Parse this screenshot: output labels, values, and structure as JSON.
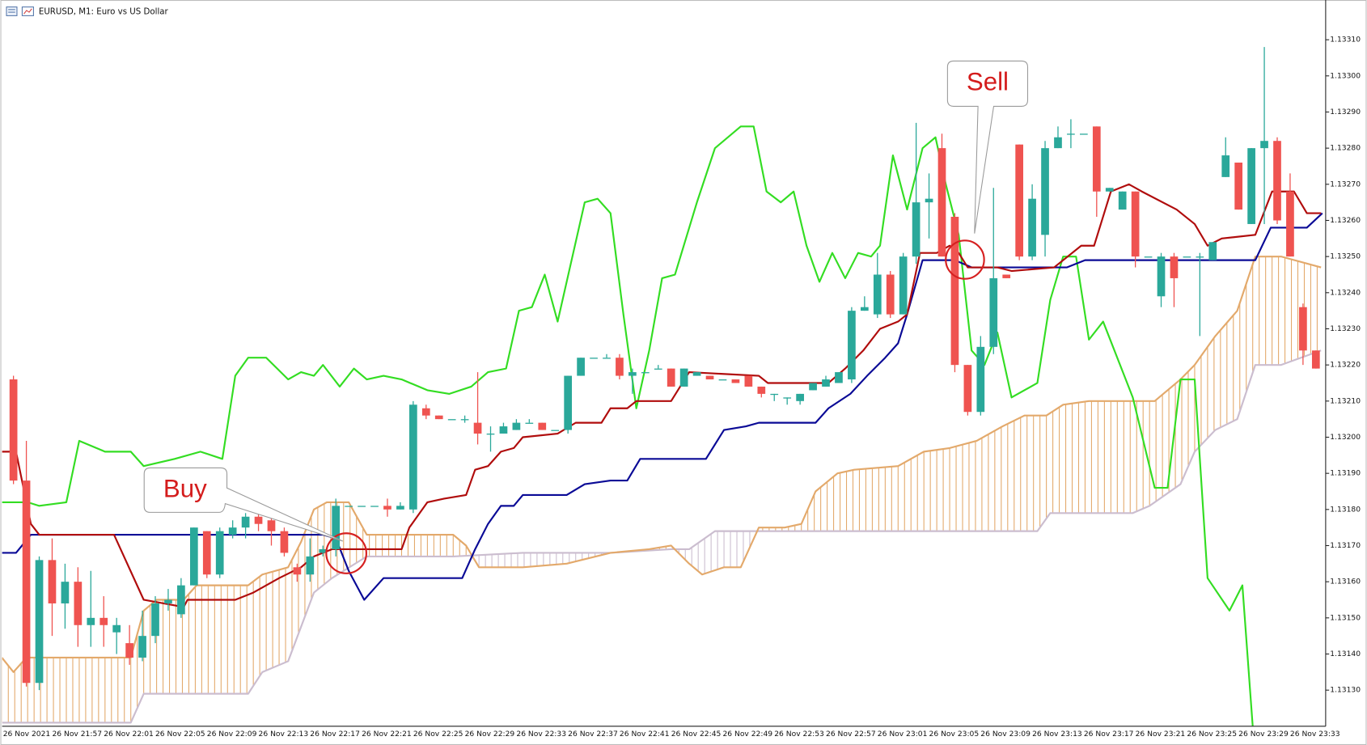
{
  "chart_data": {
    "type": "candlestick",
    "title": "EURUSD, M1: Euro vs US Dollar",
    "up_color": "#2aa89a",
    "down_color": "#ef5350",
    "categories": [
      "26 Nov 2021",
      null,
      null,
      "26 Nov 21:57",
      null,
      null,
      null,
      "26 Nov 22:01",
      null,
      null,
      null,
      "26 Nov 22:05",
      null,
      null,
      null,
      "26 Nov 22:09",
      null,
      null,
      null,
      "26 Nov 22:13",
      null,
      null,
      null,
      "26 Nov 22:17",
      null,
      null,
      null,
      "26 Nov 22:21",
      null,
      null,
      null,
      "26 Nov 22:25",
      null,
      null,
      null,
      "26 Nov 22:29",
      null,
      null,
      null,
      "26 Nov 22:33",
      null,
      null,
      null,
      "26 Nov 22:37",
      null,
      null,
      null,
      "26 Nov 22:41",
      null,
      null,
      null,
      "26 Nov 22:45",
      null,
      null,
      null,
      "26 Nov 22:49",
      null,
      null,
      null,
      "26 Nov 22:53",
      null,
      null,
      null,
      "26 Nov 22:57",
      null,
      null,
      null,
      "26 Nov 23:01",
      null,
      null,
      null,
      "26 Nov 23:05",
      null,
      null,
      null,
      "26 Nov 23:09",
      null,
      null,
      null,
      "26 Nov 23:13",
      null,
      null,
      null,
      "26 Nov 23:17",
      null,
      null,
      null,
      "26 Nov 23:21",
      null,
      null,
      null,
      "26 Nov 23:25",
      null,
      null,
      null,
      "26 Nov 23:29",
      null,
      null,
      null,
      "26 Nov 23:33",
      null,
      null
    ],
    "open": [
      1.13216,
      1.13188,
      1.13132,
      1.13166,
      1.13154,
      1.1316,
      1.13148,
      1.1315,
      1.13146,
      1.13143,
      1.13139,
      1.13145,
      1.13154,
      1.13151,
      1.13159,
      1.13174,
      1.13162,
      1.13173,
      1.13175,
      1.13178,
      1.13177,
      1.13174,
      1.13164,
      1.13162,
      1.13168,
      1.13169,
      1.13181,
      1.13181,
      1.13181,
      1.13181,
      1.1318,
      1.1318,
      1.13208,
      1.13206,
      1.13205,
      1.13205,
      1.13204,
      1.13201,
      1.13201,
      1.13202,
      1.13204,
      1.13204,
      1.13202,
      1.13202,
      1.13217,
      1.13222,
      1.13222,
      1.13222,
      1.13217,
      1.13218,
      1.13219,
      1.13219,
      1.13214,
      1.13217,
      1.13217,
      1.13216,
      1.13216,
      1.13217,
      1.13214,
      1.13212,
      1.13211,
      1.1321,
      1.13213,
      1.13214,
      1.13215,
      1.13216,
      1.13235,
      1.13234,
      1.13245,
      1.13234,
      1.1325,
      1.13265,
      1.1328,
      1.13261,
      1.1322,
      1.13207,
      1.13225,
      1.13245,
      1.13281,
      1.1325,
      1.13256,
      1.1328,
      1.13284,
      1.13284,
      1.13286,
      1.13268,
      1.13263,
      1.13268,
      1.1325,
      1.13239,
      1.1325,
      1.1325,
      1.1325,
      1.13249,
      1.13272,
      1.13276,
      1.13259,
      1.1328,
      1.13282,
      1.13268,
      1.13236,
      1.13224
    ],
    "high": [
      1.13217,
      1.13199,
      1.13167,
      1.13172,
      1.13165,
      1.13164,
      1.13163,
      1.13156,
      1.1315,
      1.13148,
      1.13152,
      1.13156,
      1.13158,
      1.13161,
      1.13175,
      1.13174,
      1.13175,
      1.13177,
      1.13179,
      1.1318,
      1.13178,
      1.13175,
      1.13165,
      1.13172,
      1.1317,
      1.13183,
      1.13181,
      1.13181,
      1.13181,
      1.13183,
      1.13182,
      1.1321,
      1.13209,
      1.13206,
      1.13205,
      1.13206,
      1.13218,
      1.13203,
      1.13204,
      1.13205,
      1.13205,
      1.13204,
      1.13202,
      1.13217,
      1.13222,
      1.13222,
      1.13223,
      1.13223,
      1.13219,
      1.13218,
      1.1322,
      1.13219,
      1.13219,
      1.13218,
      1.13217,
      1.13216,
      1.13216,
      1.13217,
      1.13214,
      1.13212,
      1.13211,
      1.13212,
      1.13215,
      1.13217,
      1.13218,
      1.13236,
      1.13239,
      1.13251,
      1.13246,
      1.13251,
      1.13287,
      1.13273,
      1.13284,
      1.13262,
      1.1322,
      1.13228,
      1.13269,
      1.13245,
      1.13281,
      1.1327,
      1.13282,
      1.13286,
      1.13288,
      1.13284,
      1.13286,
      1.13269,
      1.13268,
      1.13268,
      1.1325,
      1.13251,
      1.13251,
      1.1325,
      1.13251,
      1.13254,
      1.13283,
      1.13276,
      1.1328,
      1.13308,
      1.13283,
      1.13273,
      1.13237,
      1.13224
    ],
    "low": [
      1.13187,
      1.13131,
      1.1313,
      1.13145,
      1.13147,
      1.13142,
      1.13142,
      1.13142,
      1.1314,
      1.13137,
      1.13138,
      1.13143,
      1.13152,
      1.1315,
      1.13159,
      1.13161,
      1.13161,
      1.13172,
      1.13172,
      1.13174,
      1.1317,
      1.13167,
      1.1316,
      1.1316,
      1.13167,
      1.13167,
      1.13181,
      1.13181,
      1.13181,
      1.13178,
      1.1318,
      1.13179,
      1.13205,
      1.13205,
      1.13205,
      1.13204,
      1.13198,
      1.13196,
      1.13201,
      1.13202,
      1.13204,
      1.13202,
      1.13202,
      1.13201,
      1.13217,
      1.13222,
      1.13222,
      1.13216,
      1.13212,
      1.13218,
      1.13219,
      1.13214,
      1.13214,
      1.13217,
      1.13216,
      1.13216,
      1.13215,
      1.13214,
      1.13211,
      1.1321,
      1.13209,
      1.13209,
      1.13213,
      1.13214,
      1.13215,
      1.13215,
      1.13235,
      1.13233,
      1.13233,
      1.13234,
      1.13248,
      1.13255,
      1.1325,
      1.13218,
      1.13206,
      1.13206,
      1.13223,
      1.13244,
      1.13249,
      1.13249,
      1.1325,
      1.1328,
      1.1328,
      1.13284,
      1.13261,
      1.13268,
      1.13263,
      1.13247,
      1.1325,
      1.13236,
      1.13236,
      1.1325,
      1.13228,
      1.13249,
      1.13272,
      1.13263,
      1.13259,
      1.13259,
      1.13259,
      1.1325,
      1.1322,
      1.13219
    ],
    "close": [
      1.13188,
      1.13132,
      1.13166,
      1.13154,
      1.1316,
      1.13148,
      1.1315,
      1.13148,
      1.13148,
      1.13139,
      1.13145,
      1.13154,
      1.13155,
      1.13159,
      1.13175,
      1.13162,
      1.13174,
      1.13175,
      1.13178,
      1.13176,
      1.13174,
      1.13168,
      1.13162,
      1.13167,
      1.13169,
      1.13181,
      1.13181,
      1.13181,
      1.13181,
      1.1318,
      1.13181,
      1.13209,
      1.13206,
      1.13205,
      1.13205,
      1.13205,
      1.13201,
      1.13201,
      1.13203,
      1.13204,
      1.13204,
      1.13202,
      1.13202,
      1.13217,
      1.13222,
      1.13222,
      1.13222,
      1.13217,
      1.13218,
      1.13218,
      1.13219,
      1.13214,
      1.13219,
      1.13218,
      1.13216,
      1.13216,
      1.13215,
      1.13214,
      1.13212,
      1.13212,
      1.13211,
      1.13212,
      1.13215,
      1.13216,
      1.13218,
      1.13235,
      1.13236,
      1.13245,
      1.13234,
      1.1325,
      1.13265,
      1.13266,
      1.1325,
      1.1322,
      1.13207,
      1.13225,
      1.13244,
      1.13244,
      1.1325,
      1.13266,
      1.1328,
      1.13283,
      1.13284,
      1.13284,
      1.13268,
      1.13269,
      1.13268,
      1.1325,
      1.1325,
      1.1325,
      1.13244,
      1.1325,
      1.1325,
      1.13254,
      1.13278,
      1.13263,
      1.1328,
      1.13282,
      1.1326,
      1.1325,
      1.13224,
      1.13219
    ],
    "lines": [
      {
        "color": "#cbbdcf",
        "x": [
          -0.9,
          9.1,
          10.1,
          18.2,
          19.3,
          21.3,
          23.3,
          24.7,
          27.4,
          34.1,
          39.5,
          46.3,
          51,
          52.4,
          54.4,
          79.4,
          80.4,
          86.8,
          88.1,
          90.5,
          91.6,
          93.2,
          94.9,
          96.3,
          98.3,
          101.4
        ],
        "values": [
          1.13121,
          1.13121,
          1.13129,
          1.13129,
          1.13135,
          1.13138,
          1.13157,
          1.13161,
          1.13167,
          1.13167,
          1.13168,
          1.13168,
          1.13169,
          1.13169,
          1.13174,
          1.13174,
          1.13179,
          1.13179,
          1.13181,
          1.13187,
          1.13196,
          1.13202,
          1.13205,
          1.1322,
          1.1322,
          1.13224
        ]
      },
      {
        "color": "#e3a96b",
        "x": [
          -0.9,
          0,
          1,
          9.1,
          10.1,
          11.1,
          13.2,
          14.2,
          18.2,
          19.3,
          21.3,
          22.3,
          23.3,
          24.3,
          26,
          27.4,
          34.1,
          35.1,
          36.1,
          39.5,
          42.9,
          46.3,
          49.3,
          51,
          52.4,
          53.4,
          55.1,
          56.4,
          57.8,
          59.8,
          61.1,
          62.2,
          63.9,
          65.2,
          68.6,
          70.6,
          72.6,
          74.7,
          76.7,
          78.4,
          80.1,
          81.4,
          83.4,
          86.1,
          88.5,
          90.5,
          91.6,
          93.2,
          94.9,
          96.3,
          98.3,
          101.4
        ],
        "values": [
          1.13139,
          1.13135,
          1.13139,
          1.13139,
          1.13152,
          1.13155,
          1.13155,
          1.13159,
          1.13159,
          1.13162,
          1.13164,
          1.13171,
          1.1318,
          1.13182,
          1.13182,
          1.13173,
          1.13173,
          1.1317,
          1.13164,
          1.13164,
          1.13165,
          1.13168,
          1.13169,
          1.1317,
          1.13165,
          1.13162,
          1.13164,
          1.13164,
          1.13175,
          1.13175,
          1.13176,
          1.13185,
          1.1319,
          1.13191,
          1.13192,
          1.13196,
          1.13197,
          1.13199,
          1.13203,
          1.13206,
          1.13206,
          1.13209,
          1.1321,
          1.1321,
          1.1321,
          1.13216,
          1.1322,
          1.13228,
          1.13235,
          1.1325,
          1.1325,
          1.13247
        ]
      },
      {
        "color": "#33dd22",
        "x": [
          -0.9,
          1.1,
          2,
          4.1,
          5.1,
          7.1,
          9.1,
          10.1,
          12.5,
          14.5,
          16.2,
          17.2,
          18.2,
          19.6,
          21.3,
          22.3,
          23.3,
          24,
          25.3,
          26.4,
          27.4,
          28.7,
          30.1,
          32.1,
          33.8,
          35.5,
          36.8,
          38.2,
          39.2,
          40.2,
          41.2,
          42.2,
          44.3,
          45.3,
          46.3,
          47.3,
          48.3,
          49.3,
          50.3,
          51.3,
          53,
          54.4,
          56.4,
          57.4,
          58.4,
          59.5,
          60.5,
          61.5,
          62.5,
          63.5,
          64.5,
          65.5,
          66.5,
          67.2,
          68.2,
          69.3,
          70.5,
          71.5,
          72.3,
          73.3,
          74.3,
          75.3,
          76.3,
          77.4,
          79.4,
          80.4,
          81.4,
          82.4,
          83.4,
          84.5,
          86.8,
          88.5,
          89.5,
          90.5,
          91.6,
          92.6,
          94.3,
          95.3,
          96.1
        ],
        "values": [
          1.13182,
          1.13182,
          1.13181,
          1.13182,
          1.13199,
          1.13196,
          1.13196,
          1.13192,
          1.13194,
          1.13196,
          1.13194,
          1.13217,
          1.13222,
          1.13222,
          1.13216,
          1.13218,
          1.13217,
          1.1322,
          1.13214,
          1.13219,
          1.13216,
          1.13217,
          1.13216,
          1.13213,
          1.13212,
          1.13214,
          1.13218,
          1.13219,
          1.13235,
          1.13236,
          1.13245,
          1.13232,
          1.13265,
          1.13266,
          1.13262,
          1.13234,
          1.13208,
          1.13224,
          1.13244,
          1.13245,
          1.13265,
          1.1328,
          1.13286,
          1.13286,
          1.13268,
          1.13265,
          1.13268,
          1.13253,
          1.13243,
          1.13251,
          1.13244,
          1.13251,
          1.1325,
          1.13253,
          1.13278,
          1.13263,
          1.1328,
          1.13283,
          1.1327,
          1.13256,
          1.13224,
          1.1322,
          1.13229,
          1.13211,
          1.13215,
          1.13238,
          1.1325,
          1.1325,
          1.13227,
          1.13232,
          1.13211,
          1.13186,
          1.13186,
          1.13216,
          1.13216,
          1.13161,
          1.13152,
          1.13159,
          1.1312
        ]
      },
      {
        "color": "#0a0a96",
        "x": [
          -0.9,
          0.2,
          1.35,
          24,
          25,
          26,
          27.2,
          28.7,
          34.8,
          35.8,
          36.8,
          37.8,
          38.8,
          39.5,
          42.9,
          44.3,
          46.3,
          47.6,
          48.6,
          53.7,
          55.1,
          56.8,
          57.8,
          62.2,
          63.2,
          64.9,
          66.2,
          67.6,
          68.6,
          69.3,
          70.5,
          73,
          74.3,
          81.7,
          83.1,
          96.3,
          97.5,
          100.3,
          101.5
        ],
        "values": [
          1.13168,
          1.13168,
          1.13173,
          1.13173,
          1.13172,
          1.13163,
          1.13155,
          1.13161,
          1.13161,
          1.13169,
          1.13176,
          1.13181,
          1.13181,
          1.13184,
          1.13184,
          1.13187,
          1.13188,
          1.13188,
          1.13194,
          1.13194,
          1.13202,
          1.13203,
          1.13204,
          1.13204,
          1.13208,
          1.13212,
          1.13217,
          1.13222,
          1.13226,
          1.13234,
          1.13249,
          1.13249,
          1.13247,
          1.13247,
          1.13249,
          1.13249,
          1.13258,
          1.13258,
          1.13262
        ]
      },
      {
        "color": "#b00c0c",
        "x": [
          -0.9,
          0.2,
          1.35,
          2,
          7.8,
          10.1,
          13.2,
          13.5,
          17.2,
          18.6,
          20.6,
          22.3,
          23.3,
          24.7,
          30.1,
          30.7,
          32.1,
          33.4,
          35.1,
          35.8,
          36.8,
          37.8,
          38.8,
          39.5,
          42.2,
          43.6,
          45.6,
          46.3,
          47.6,
          48.3,
          51,
          52.4,
          57.8,
          58.5,
          59.8,
          63.2,
          64.5,
          65.9,
          67.2,
          68.6,
          69.3,
          70.3,
          71.6,
          72.6,
          73.3,
          74,
          76.3,
          77.4,
          80.7,
          82.8,
          83.8,
          85.1,
          86.5,
          87.5,
          90.2,
          91.6,
          92.6,
          93.7,
          96.3,
          97.6,
          99.3,
          100.3,
          101.4
        ],
        "values": [
          1.13196,
          1.13196,
          1.13176,
          1.13173,
          1.13173,
          1.13155,
          1.13153,
          1.13155,
          1.13155,
          1.13157,
          1.13161,
          1.13164,
          1.13167,
          1.13169,
          1.13169,
          1.13175,
          1.13182,
          1.13183,
          1.13184,
          1.13191,
          1.13192,
          1.13196,
          1.13197,
          1.132,
          1.13201,
          1.13204,
          1.13204,
          1.13208,
          1.13208,
          1.1321,
          1.1321,
          1.13218,
          1.13217,
          1.13215,
          1.13215,
          1.13215,
          1.13219,
          1.13224,
          1.1323,
          1.13232,
          1.13234,
          1.13251,
          1.13251,
          1.13253,
          1.13251,
          1.13247,
          1.13247,
          1.13246,
          1.13247,
          1.13253,
          1.13253,
          1.13268,
          1.1327,
          1.13268,
          1.13263,
          1.13259,
          1.13253,
          1.13255,
          1.13256,
          1.13268,
          1.13268,
          1.13262,
          1.13262
        ]
      }
    ],
    "annotations": [
      {
        "text": "Buy"
      },
      {
        "text": "Sell"
      }
    ],
    "ylim": [
      1.1312,
      1.13321
    ],
    "yticks": [
      {
        "value": 1.1313,
        "label": "1.13130"
      },
      {
        "value": 1.1314,
        "label": "1.13140"
      },
      {
        "value": 1.1315,
        "label": "1.13150"
      },
      {
        "value": 1.1316,
        "label": "1.13160"
      },
      {
        "value": 1.1317,
        "label": "1.13170"
      },
      {
        "value": 1.1318,
        "label": "1.13180"
      },
      {
        "value": 1.1319,
        "label": "1.13190"
      },
      {
        "value": 1.132,
        "label": "1.13200"
      },
      {
        "value": 1.1321,
        "label": "1.13210"
      },
      {
        "value": 1.1322,
        "label": "1.13220"
      },
      {
        "value": 1.1323,
        "label": "1.13230"
      },
      {
        "value": 1.1324,
        "label": "1.13240"
      },
      {
        "value": 1.1325,
        "label": "1.13250"
      },
      {
        "value": 1.1326,
        "label": "1.13260"
      },
      {
        "value": 1.1327,
        "label": "1.13270"
      },
      {
        "value": 1.1328,
        "label": "1.13280"
      },
      {
        "value": 1.1329,
        "label": "1.13290"
      },
      {
        "value": 1.133,
        "label": "1.13300"
      },
      {
        "value": 1.1331,
        "label": "1.13310"
      }
    ],
    "grid": false
  }
}
